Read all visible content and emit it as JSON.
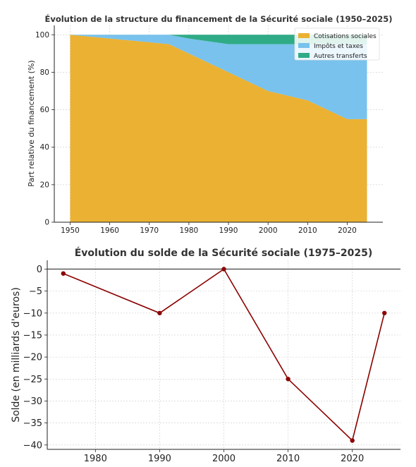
{
  "chart_data": [
    {
      "type": "area",
      "title": "Évolution de la structure du financement de la Sécurité sociale (1950–2025)",
      "xlabel": "",
      "ylabel": "Part relative du financement (%)",
      "x": [
        1950,
        1960,
        1970,
        1975,
        1980,
        1990,
        2000,
        2010,
        2020,
        2025
      ],
      "series": [
        {
          "name": "Cotisations sociales",
          "color": "#ebb133",
          "values": [
            100,
            98,
            96,
            95,
            90,
            80,
            70,
            65,
            55,
            55
          ]
        },
        {
          "name": "Impôts et taxes",
          "color": "#78c2ed",
          "values": [
            0,
            2,
            4,
            5,
            8,
            15,
            25,
            30,
            40,
            40
          ]
        },
        {
          "name": "Autres transferts",
          "color": "#2fab86",
          "values": [
            0,
            0,
            0,
            0,
            2,
            5,
            5,
            5,
            5,
            5
          ]
        }
      ],
      "xticks": [
        1950,
        1960,
        1970,
        1980,
        1990,
        2000,
        2010,
        2020
      ],
      "yticks": [
        0,
        20,
        40,
        60,
        80,
        100
      ],
      "xlim": [
        1946,
        2029
      ],
      "ylim": [
        0,
        105
      ],
      "grid": true,
      "legend": "top-right",
      "stacked": true
    },
    {
      "type": "line",
      "title": "Évolution du solde de la Sécurité sociale (1975–2025)",
      "xlabel": "",
      "ylabel": "Solde (en milliards d'euros)",
      "x": [
        1975,
        1990,
        2000,
        2010,
        2020,
        2025
      ],
      "series": [
        {
          "color": "#8b0000",
          "values": [
            -1,
            -10,
            0,
            -25,
            -39,
            -10
          ]
        }
      ],
      "xticks": [
        1980,
        1990,
        2000,
        2010,
        2020
      ],
      "yticks": [
        0,
        -5,
        -10,
        -15,
        -20,
        -25,
        -30,
        -35,
        -40
      ],
      "xlim": [
        1972.5,
        2027.5
      ],
      "ylim": [
        -41,
        2
      ],
      "grid": true,
      "zero_line": true
    }
  ]
}
